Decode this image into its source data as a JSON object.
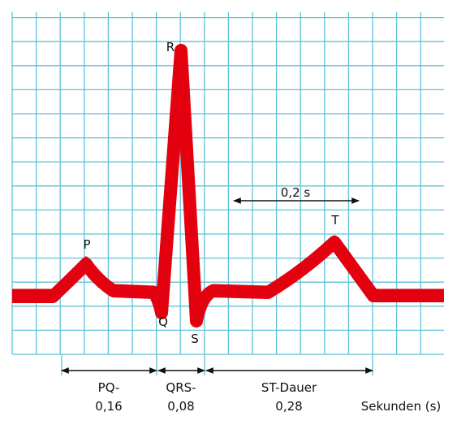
{
  "colors": {
    "grid": "#5ec3d8",
    "trace": "#e3000f",
    "text": "#111111"
  },
  "wave_labels": {
    "p": "P",
    "q": "Q",
    "r": "R",
    "s": "S",
    "t": "T"
  },
  "scale_bar": {
    "label": "0,2 s"
  },
  "intervals": {
    "pq": {
      "name": "PQ-",
      "value": "0,16"
    },
    "qrs": {
      "name": "QRS-",
      "value": "0,08"
    },
    "st": {
      "name": "ST-Dauer",
      "value": "0,28"
    }
  },
  "unit_label": "Sekunden (s)"
}
